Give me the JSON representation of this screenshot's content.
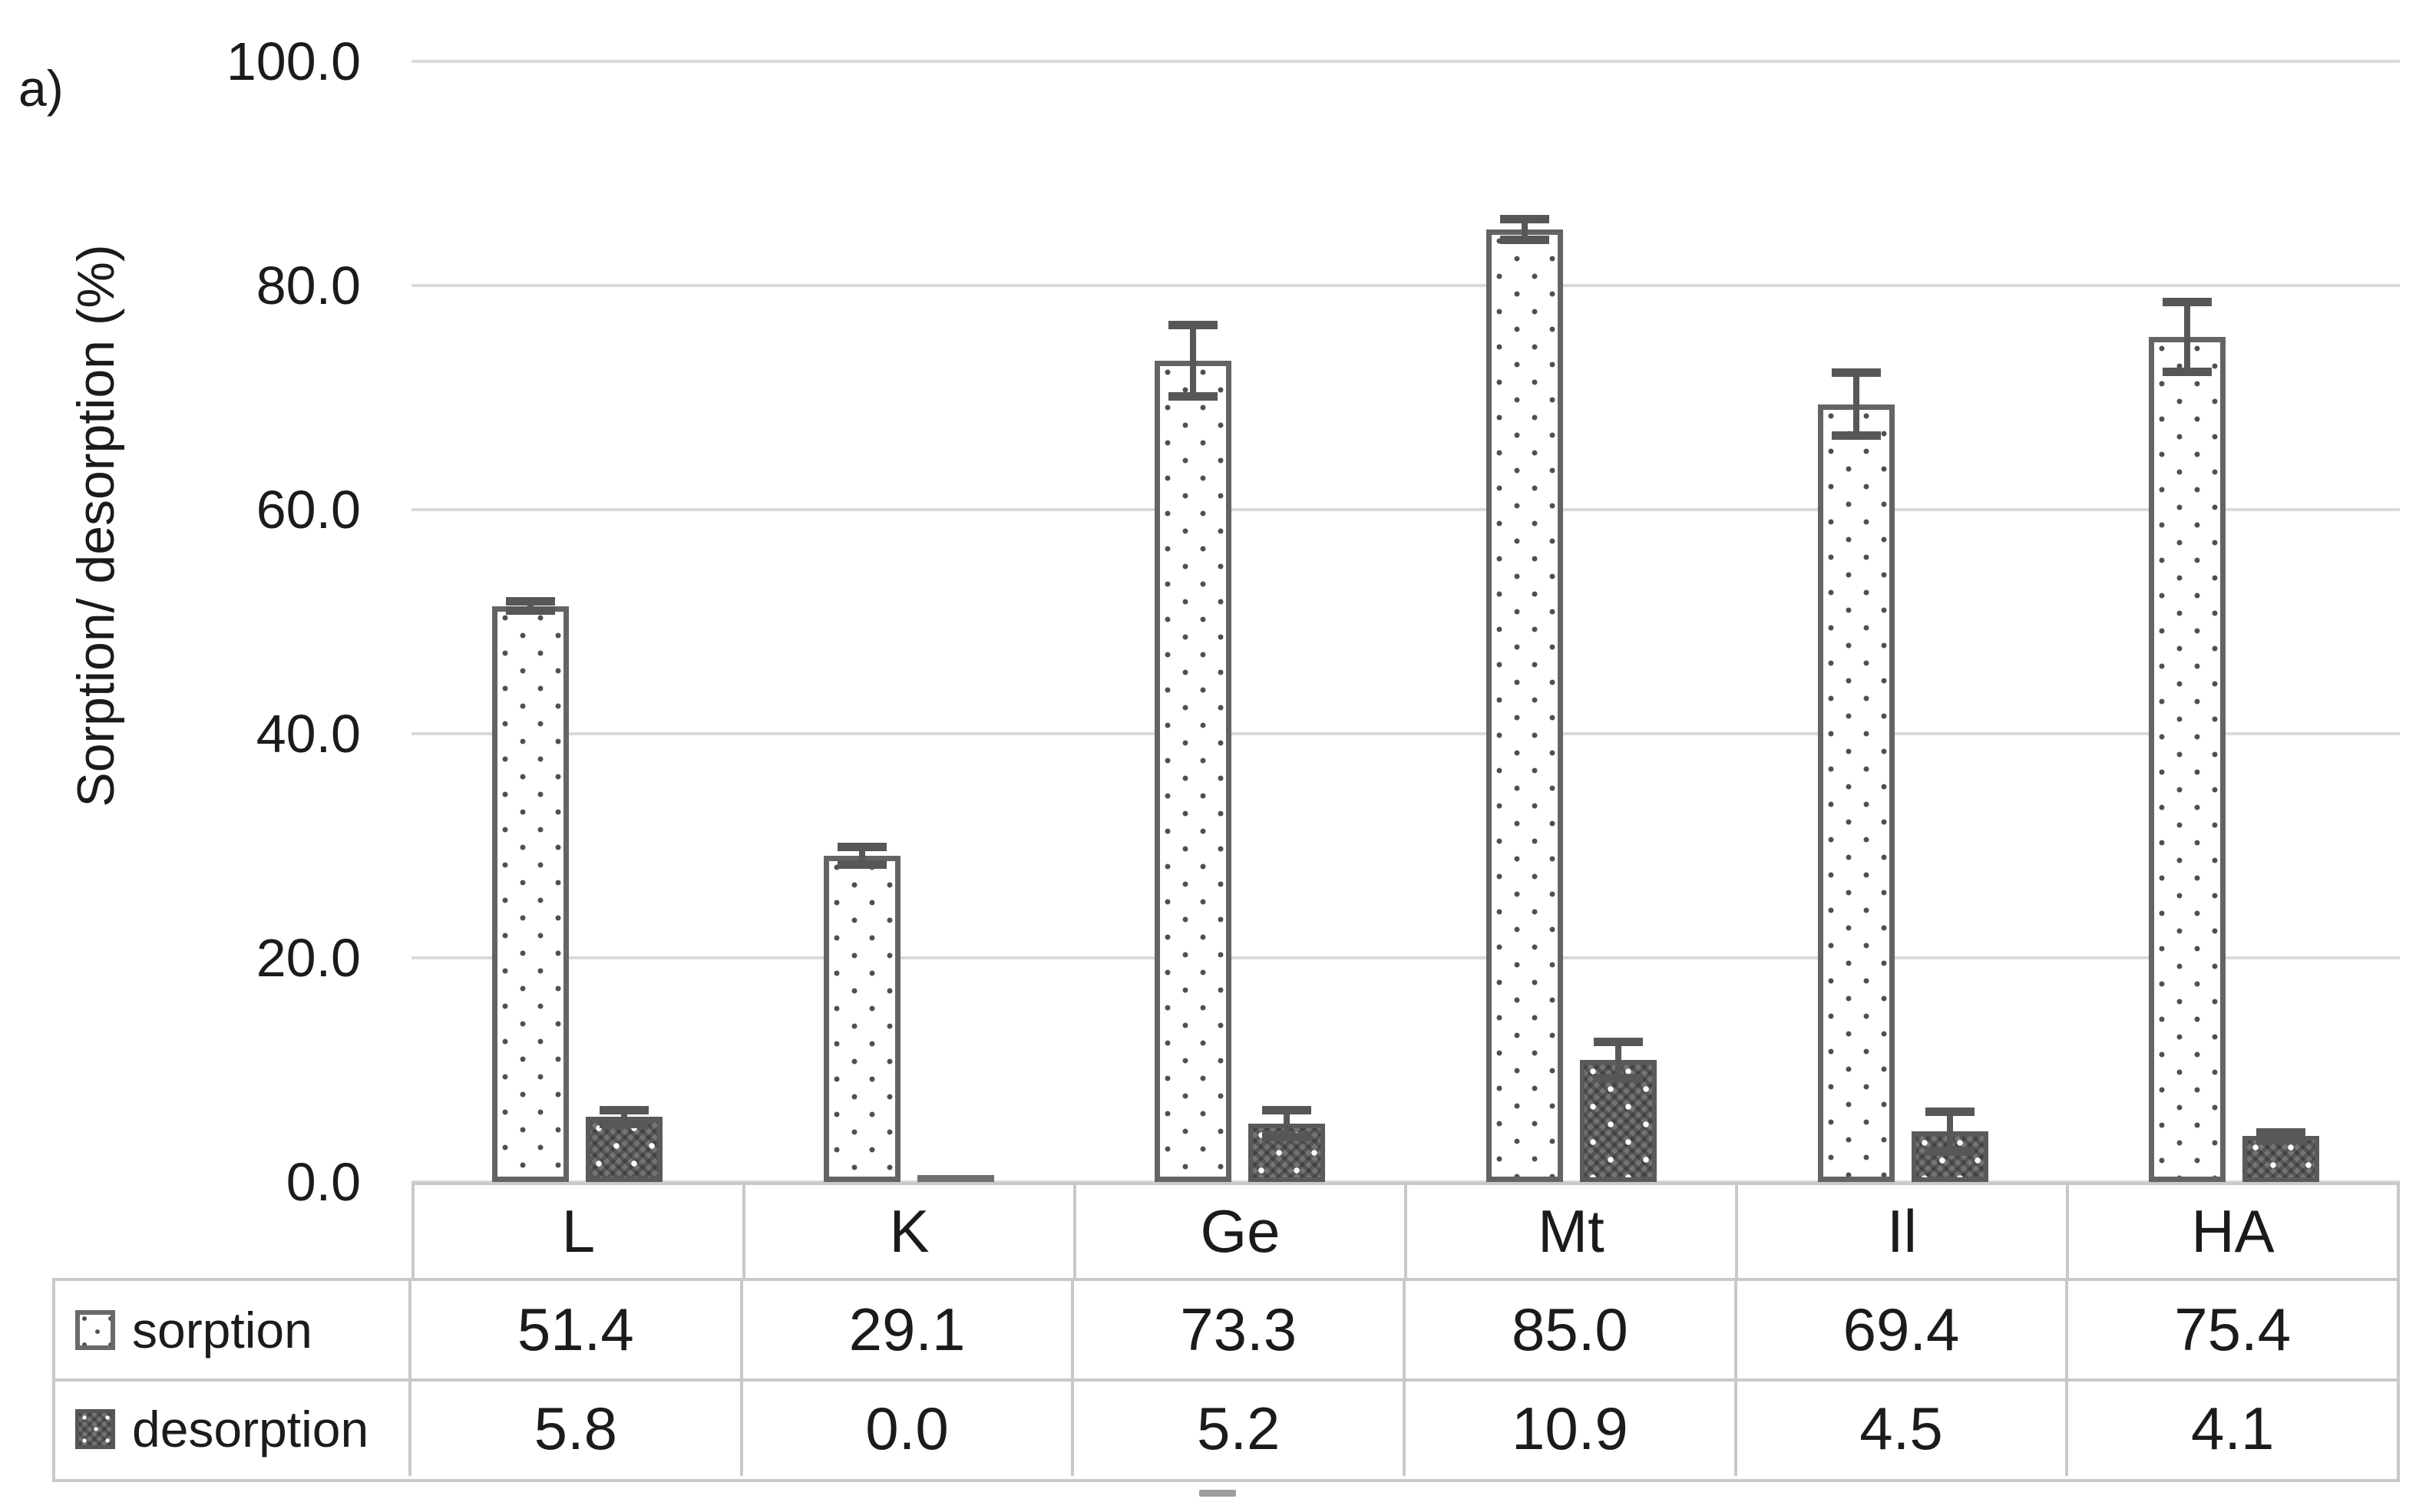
{
  "panel_label": "a)",
  "colors": {
    "gridline": "#dadada",
    "table_border": "#c9c9c9",
    "bar_outline": "#646464",
    "error_bar": "#575757",
    "desorption_fill": "#757575",
    "text": "#1b1b1b",
    "background": "#ffffff"
  },
  "chart_data": {
    "type": "bar",
    "title": "",
    "xlabel": "",
    "ylabel": "Sorption/ desorption (%)",
    "categories": [
      "L",
      "K",
      "Ge",
      "Mt",
      "Il",
      "HA"
    ],
    "series": [
      {
        "name": "sorption",
        "values": [
          51.4,
          29.1,
          73.3,
          85.0,
          69.4,
          75.4
        ],
        "errors": [
          0.5,
          0.9,
          3.3,
          1.0,
          2.9,
          3.2
        ],
        "pattern": "white-dotted"
      },
      {
        "name": "desorption",
        "values": [
          5.8,
          0.0,
          5.2,
          10.9,
          4.5,
          4.1
        ],
        "errors": [
          0.7,
          0.0,
          1.3,
          1.7,
          1.9,
          0.4
        ],
        "pattern": "dark-checker"
      }
    ],
    "ylim": [
      0,
      100
    ],
    "ytick_step": 20,
    "ytick_labels": [
      "0.0",
      "20.0",
      "40.0",
      "60.0",
      "80.0",
      "100.0"
    ],
    "grid": true,
    "legend_position": "data-table-left",
    "value_format": "one-decimal",
    "data_table_shown": true
  }
}
